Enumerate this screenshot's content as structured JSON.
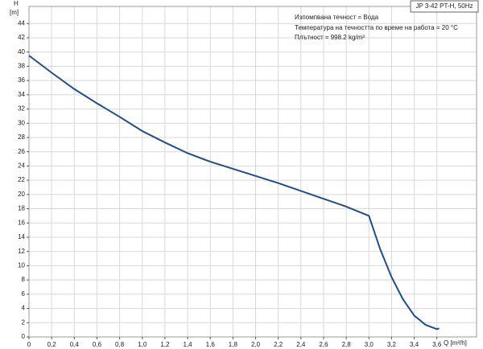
{
  "chart_data": {
    "type": "line",
    "title": "JP 3-42 PT-H, 50Hz",
    "annotations": [
      "Изпомпвана течност = Вода",
      "Температура на течността по време на работа = 20 °C",
      "Плътност = 998.2 kg/m³"
    ],
    "y_label": "H",
    "y_unit": "[m]",
    "x_label": "Q [m³/h]",
    "x": [
      0,
      0.2,
      0.4,
      0.6,
      0.8,
      1.0,
      1.2,
      1.4,
      1.6,
      1.8,
      2.0,
      2.2,
      2.4,
      2.6,
      2.8,
      3.0,
      3.1,
      3.2,
      3.3,
      3.4,
      3.5,
      3.6,
      3.62
    ],
    "series": [
      {
        "name": "H",
        "color": "#1f4e8c",
        "values": [
          39.5,
          37.1,
          34.8,
          32.8,
          30.9,
          28.9,
          27.3,
          25.8,
          24.6,
          23.6,
          22.6,
          21.6,
          20.5,
          19.4,
          18.3,
          17.0,
          12.3,
          8.4,
          5.3,
          3.0,
          1.7,
          1.1,
          1.2
        ]
      }
    ],
    "xlim": [
      0,
      3.95
    ],
    "ylim": [
      0,
      46.4
    ],
    "xticks": [
      0,
      {
        "value": 0.2,
        "label": "0,2"
      },
      {
        "value": 0.4,
        "label": "0,4"
      },
      {
        "value": 0.6,
        "label": "0,6"
      },
      {
        "value": 0.8,
        "label": "0,8"
      },
      {
        "value": 1.0,
        "label": "1,0"
      },
      {
        "value": 1.2,
        "label": "1,2"
      },
      {
        "value": 1.4,
        "label": "1,4"
      },
      {
        "value": 1.6,
        "label": "1,6"
      },
      {
        "value": 1.8,
        "label": "1,8"
      },
      {
        "value": 2.0,
        "label": "2,0"
      },
      {
        "value": 2.2,
        "label": "2,2"
      },
      {
        "value": 2.4,
        "label": "2,4"
      },
      {
        "value": 2.6,
        "label": "2,6"
      },
      {
        "value": 2.8,
        "label": "2,8"
      },
      {
        "value": 3.0,
        "label": "3,0"
      },
      {
        "value": 3.2,
        "label": "3,2"
      },
      {
        "value": 3.4,
        "label": "3,4"
      },
      {
        "value": 3.6,
        "label": "3,6"
      }
    ],
    "yticks": [
      0,
      2,
      4,
      6,
      8,
      10,
      12,
      14,
      16,
      18,
      20,
      22,
      24,
      26,
      28,
      30,
      32,
      34,
      36,
      38,
      40,
      42,
      44
    ],
    "grid": true
  }
}
